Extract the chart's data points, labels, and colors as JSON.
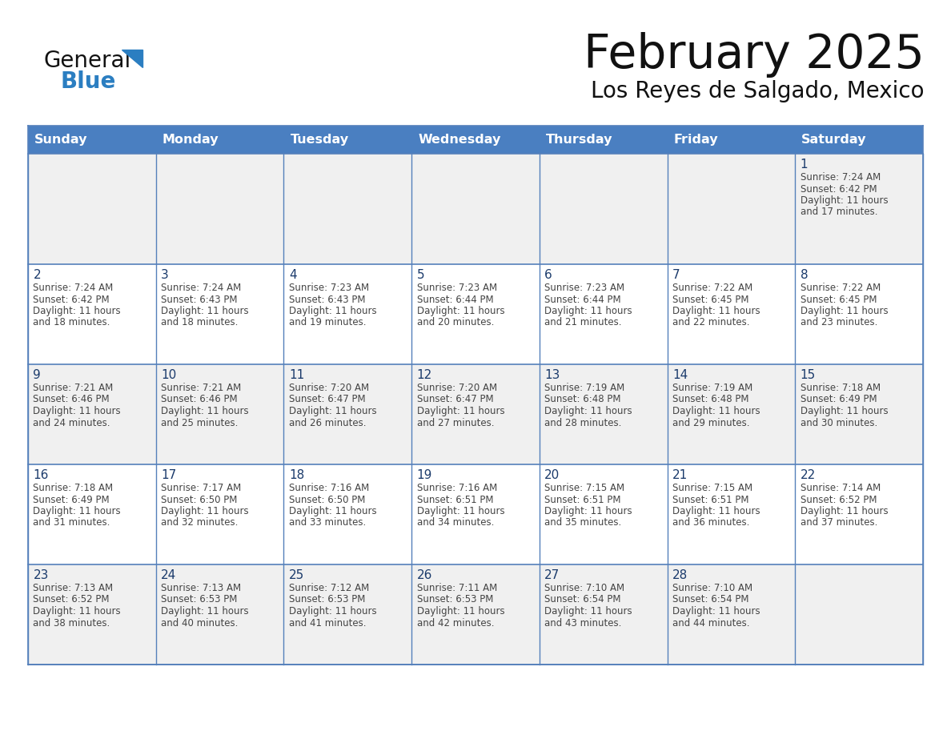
{
  "title": "February 2025",
  "subtitle": "Los Reyes de Salgado, Mexico",
  "days_of_week": [
    "Sunday",
    "Monday",
    "Tuesday",
    "Wednesday",
    "Thursday",
    "Friday",
    "Saturday"
  ],
  "header_bg": "#4a7fc1",
  "header_text_color": "#FFFFFF",
  "cell_bg_row0": "#F0F0F0",
  "cell_bg_row1": "#FFFFFF",
  "cell_bg_row2": "#F0F0F0",
  "cell_bg_row3": "#FFFFFF",
  "cell_bg_row4": "#F0F0F0",
  "cell_text_color": "#444444",
  "day_number_color": "#1a3a6b",
  "title_color": "#111111",
  "subtitle_color": "#111111",
  "grid_line_color": "#5580bb",
  "logo_general_color": "#111111",
  "logo_blue_color": "#2B7EC1",
  "calendar_data": [
    [
      null,
      null,
      null,
      null,
      null,
      null,
      {
        "day": 1,
        "sunrise": "7:24 AM",
        "sunset": "6:42 PM",
        "daylight": "11 hours and 17 minutes."
      }
    ],
    [
      {
        "day": 2,
        "sunrise": "7:24 AM",
        "sunset": "6:42 PM",
        "daylight": "11 hours and 18 minutes."
      },
      {
        "day": 3,
        "sunrise": "7:24 AM",
        "sunset": "6:43 PM",
        "daylight": "11 hours and 18 minutes."
      },
      {
        "day": 4,
        "sunrise": "7:23 AM",
        "sunset": "6:43 PM",
        "daylight": "11 hours and 19 minutes."
      },
      {
        "day": 5,
        "sunrise": "7:23 AM",
        "sunset": "6:44 PM",
        "daylight": "11 hours and 20 minutes."
      },
      {
        "day": 6,
        "sunrise": "7:23 AM",
        "sunset": "6:44 PM",
        "daylight": "11 hours and 21 minutes."
      },
      {
        "day": 7,
        "sunrise": "7:22 AM",
        "sunset": "6:45 PM",
        "daylight": "11 hours and 22 minutes."
      },
      {
        "day": 8,
        "sunrise": "7:22 AM",
        "sunset": "6:45 PM",
        "daylight": "11 hours and 23 minutes."
      }
    ],
    [
      {
        "day": 9,
        "sunrise": "7:21 AM",
        "sunset": "6:46 PM",
        "daylight": "11 hours and 24 minutes."
      },
      {
        "day": 10,
        "sunrise": "7:21 AM",
        "sunset": "6:46 PM",
        "daylight": "11 hours and 25 minutes."
      },
      {
        "day": 11,
        "sunrise": "7:20 AM",
        "sunset": "6:47 PM",
        "daylight": "11 hours and 26 minutes."
      },
      {
        "day": 12,
        "sunrise": "7:20 AM",
        "sunset": "6:47 PM",
        "daylight": "11 hours and 27 minutes."
      },
      {
        "day": 13,
        "sunrise": "7:19 AM",
        "sunset": "6:48 PM",
        "daylight": "11 hours and 28 minutes."
      },
      {
        "day": 14,
        "sunrise": "7:19 AM",
        "sunset": "6:48 PM",
        "daylight": "11 hours and 29 minutes."
      },
      {
        "day": 15,
        "sunrise": "7:18 AM",
        "sunset": "6:49 PM",
        "daylight": "11 hours and 30 minutes."
      }
    ],
    [
      {
        "day": 16,
        "sunrise": "7:18 AM",
        "sunset": "6:49 PM",
        "daylight": "11 hours and 31 minutes."
      },
      {
        "day": 17,
        "sunrise": "7:17 AM",
        "sunset": "6:50 PM",
        "daylight": "11 hours and 32 minutes."
      },
      {
        "day": 18,
        "sunrise": "7:16 AM",
        "sunset": "6:50 PM",
        "daylight": "11 hours and 33 minutes."
      },
      {
        "day": 19,
        "sunrise": "7:16 AM",
        "sunset": "6:51 PM",
        "daylight": "11 hours and 34 minutes."
      },
      {
        "day": 20,
        "sunrise": "7:15 AM",
        "sunset": "6:51 PM",
        "daylight": "11 hours and 35 minutes."
      },
      {
        "day": 21,
        "sunrise": "7:15 AM",
        "sunset": "6:51 PM",
        "daylight": "11 hours and 36 minutes."
      },
      {
        "day": 22,
        "sunrise": "7:14 AM",
        "sunset": "6:52 PM",
        "daylight": "11 hours and 37 minutes."
      }
    ],
    [
      {
        "day": 23,
        "sunrise": "7:13 AM",
        "sunset": "6:52 PM",
        "daylight": "11 hours and 38 minutes."
      },
      {
        "day": 24,
        "sunrise": "7:13 AM",
        "sunset": "6:53 PM",
        "daylight": "11 hours and 40 minutes."
      },
      {
        "day": 25,
        "sunrise": "7:12 AM",
        "sunset": "6:53 PM",
        "daylight": "11 hours and 41 minutes."
      },
      {
        "day": 26,
        "sunrise": "7:11 AM",
        "sunset": "6:53 PM",
        "daylight": "11 hours and 42 minutes."
      },
      {
        "day": 27,
        "sunrise": "7:10 AM",
        "sunset": "6:54 PM",
        "daylight": "11 hours and 43 minutes."
      },
      {
        "day": 28,
        "sunrise": "7:10 AM",
        "sunset": "6:54 PM",
        "daylight": "11 hours and 44 minutes."
      },
      null
    ]
  ]
}
